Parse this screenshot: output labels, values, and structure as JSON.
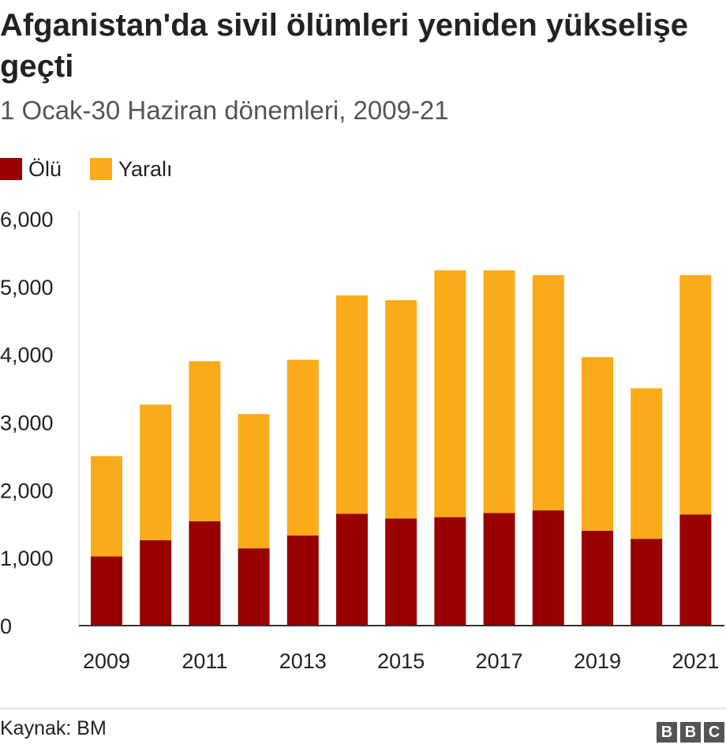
{
  "title": "Afganistan'da sivil ölümleri yeniden yükselişe geçti",
  "subtitle": "1 Ocak-30 Haziran dönemleri, 2009-21",
  "legend": [
    {
      "label": "Ölü",
      "color": "#990000"
    },
    {
      "label": "Yaralı",
      "color": "#FAAB19"
    }
  ],
  "source": "Kaynak: BM",
  "logo": [
    "B",
    "B",
    "C"
  ],
  "chart_data": {
    "type": "bar",
    "stacked": true,
    "categories": [
      "2009",
      "2010",
      "2011",
      "2012",
      "2013",
      "2014",
      "2015",
      "2016",
      "2017",
      "2018",
      "2019",
      "2020",
      "2021"
    ],
    "x_tick_labels": [
      "2009",
      "2011",
      "2013",
      "2015",
      "2017",
      "2019",
      "2021"
    ],
    "series": [
      {
        "name": "Ölü",
        "color": "#990000",
        "values": [
          1020,
          1260,
          1540,
          1140,
          1330,
          1650,
          1580,
          1600,
          1660,
          1700,
          1400,
          1280,
          1640
        ]
      },
      {
        "name": "Yaralı",
        "color": "#FAAB19",
        "values": [
          1480,
          2000,
          2360,
          1980,
          2590,
          3220,
          3220,
          3640,
          3580,
          3470,
          2560,
          2220,
          3530
        ]
      }
    ],
    "ylim": [
      0,
      6000
    ],
    "y_ticks": [
      0,
      1000,
      2000,
      3000,
      4000,
      5000,
      6000
    ],
    "y_tick_labels": [
      "0",
      "1,000",
      "2,000",
      "3,000",
      "4,000",
      "5,000",
      "6,000"
    ],
    "grid": false,
    "legend_position": "top-left"
  }
}
